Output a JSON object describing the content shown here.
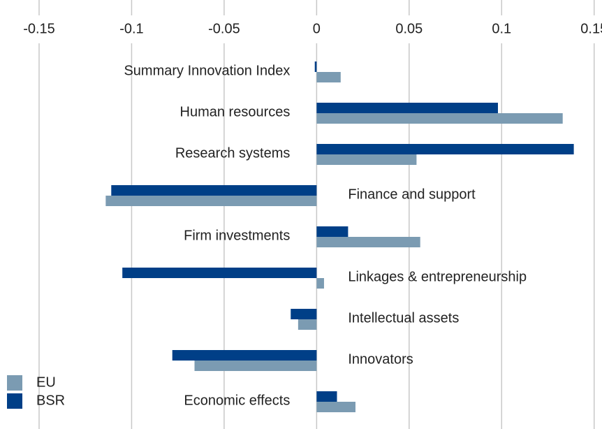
{
  "chart_data": {
    "type": "bar",
    "orientation": "horizontal",
    "categories": [
      "Summary Innovation Index",
      "Human resources",
      "Research systems",
      "Finance and support",
      "Firm investments",
      "Linkages & entrepreneurship",
      "Intellectual assets",
      "Innovators",
      "Economic effects"
    ],
    "series": [
      {
        "name": "EU",
        "color": "#7b9bb2",
        "values": [
          0.013,
          0.133,
          0.054,
          -0.114,
          0.056,
          0.004,
          -0.01,
          -0.066,
          0.021
        ]
      },
      {
        "name": "BSR",
        "color": "#003f87",
        "values": [
          -0.001,
          0.098,
          0.139,
          -0.111,
          0.017,
          -0.105,
          -0.014,
          -0.078,
          0.011
        ]
      }
    ],
    "xlim": [
      -0.17,
      0.155
    ],
    "xticks": [
      -0.15,
      -0.1,
      -0.05,
      0,
      0.05,
      0.1,
      0.15
    ],
    "grid": true,
    "legend": "lower left"
  }
}
